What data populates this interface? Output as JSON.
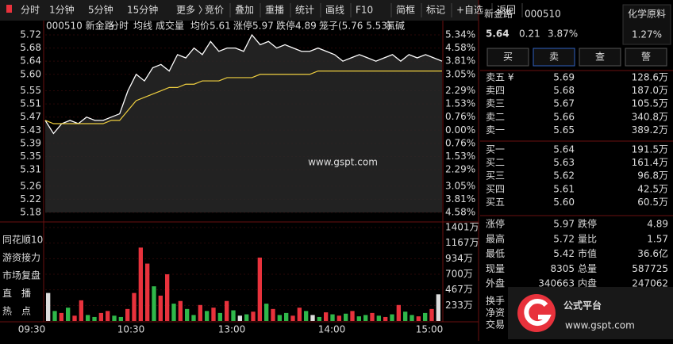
{
  "toolbar": {
    "periods": [
      "分时",
      "1分钟",
      "5分钟",
      "15分钟",
      "更多 〉"
    ],
    "tools": [
      "竞价",
      "叠加",
      "重播",
      "统计",
      "画线",
      "F10",
      "简框",
      "标记",
      "+自选",
      "返回"
    ]
  },
  "chart_header": {
    "code_name": "000510 新金路",
    "mode": "分时",
    "avg_line": "均线",
    "volume": "成交量",
    "avg_price_label": "均价",
    "avg_price": "5.61",
    "limit_up_label": "涨停",
    "limit_up": "5.97",
    "limit_down_label": "跌停",
    "limit_down": "4.89",
    "cage_label": "笼子",
    "cage": "(5.76 5.53)",
    "sector": "氯碱"
  },
  "intraday": {
    "type": "line",
    "ylim": [
      5.18,
      5.72
    ],
    "yticks": [
      {
        "value": 5.72,
        "label": "5.72"
      },
      {
        "value": 5.68,
        "label": "5.68"
      },
      {
        "value": 5.64,
        "label": "5.64"
      },
      {
        "value": 5.6,
        "label": "5.60"
      },
      {
        "value": 5.55,
        "label": "5.55"
      },
      {
        "value": 5.51,
        "label": "5.51"
      },
      {
        "value": 5.47,
        "label": "5.47"
      },
      {
        "value": 5.43,
        "label": "5.43"
      },
      {
        "value": 5.39,
        "label": "5.39"
      },
      {
        "value": 5.35,
        "label": "5.35"
      },
      {
        "value": 5.31,
        "label": "5.31"
      },
      {
        "value": 5.26,
        "label": "5.26"
      },
      {
        "value": 5.22,
        "label": "5.22"
      },
      {
        "value": 5.18,
        "label": "5.18"
      }
    ],
    "pct_labels": [
      "5.34%",
      "4.58%",
      "3.81%",
      "3.05%",
      "2.29%",
      "1.53%",
      "0.76%",
      "0.00%",
      "0.76%",
      "1.53%",
      "2.29%",
      "3.05%",
      "3.81%",
      "4.58%"
    ],
    "times": [
      "09:30",
      "10:30",
      "13:00",
      "14:00",
      "15:00"
    ],
    "price": {
      "name": "price",
      "color": "#ffffff",
      "values": [
        5.46,
        5.42,
        5.45,
        5.46,
        5.45,
        5.47,
        5.46,
        5.46,
        5.47,
        5.48,
        5.55,
        5.6,
        5.58,
        5.62,
        5.63,
        5.61,
        5.66,
        5.65,
        5.68,
        5.66,
        5.7,
        5.67,
        5.68,
        5.68,
        5.67,
        5.72,
        5.69,
        5.7,
        5.68,
        5.69,
        5.68,
        5.67,
        5.67,
        5.68,
        5.67,
        5.66,
        5.64,
        5.65,
        5.66,
        5.65,
        5.64,
        5.65,
        5.66,
        5.64,
        5.66,
        5.65,
        5.66,
        5.65,
        5.64
      ]
    },
    "avg": {
      "name": "avg",
      "color": "#f0d040",
      "values": [
        5.46,
        5.45,
        5.45,
        5.45,
        5.45,
        5.45,
        5.45,
        5.45,
        5.46,
        5.46,
        5.49,
        5.52,
        5.53,
        5.54,
        5.55,
        5.56,
        5.56,
        5.57,
        5.57,
        5.58,
        5.58,
        5.58,
        5.59,
        5.59,
        5.59,
        5.59,
        5.6,
        5.6,
        5.6,
        5.6,
        5.6,
        5.6,
        5.6,
        5.61,
        5.61,
        5.61,
        5.61,
        5.61,
        5.61,
        5.61,
        5.61,
        5.61,
        5.61,
        5.61,
        5.61,
        5.61,
        5.61,
        5.61,
        5.61
      ]
    },
    "vlim": [
      0,
      1401
    ],
    "vticks": [
      {
        "value": 1401,
        "label": "1401万"
      },
      {
        "value": 1167,
        "label": "1167万"
      },
      {
        "value": 934,
        "label": "934万"
      },
      {
        "value": 700,
        "label": "700万"
      },
      {
        "value": 467,
        "label": "467万"
      },
      {
        "value": 233,
        "label": "233万"
      }
    ],
    "volume": [
      420,
      150,
      120,
      200,
      80,
      310,
      90,
      60,
      120,
      150,
      80,
      60,
      180,
      420,
      1100,
      860,
      520,
      380,
      700,
      260,
      300,
      180,
      90,
      240,
      150,
      200,
      120,
      300,
      160,
      80,
      100,
      140,
      950,
      260,
      180,
      90,
      120,
      80,
      200,
      150,
      90,
      60,
      130,
      100,
      80,
      110,
      150,
      70,
      90,
      120,
      80,
      60,
      100,
      240,
      140,
      90,
      70,
      120,
      180,
      400
    ],
    "volume_colors": [
      "w",
      "g",
      "r",
      "g",
      "r",
      "r",
      "g",
      "g",
      "r",
      "r",
      "g",
      "g",
      "r",
      "r",
      "r",
      "r",
      "g",
      "r",
      "r",
      "g",
      "r",
      "g",
      "g",
      "r",
      "g",
      "r",
      "g",
      "r",
      "g",
      "w",
      "g",
      "r",
      "r",
      "g",
      "r",
      "g",
      "g",
      "r",
      "r",
      "g",
      "w",
      "g",
      "r",
      "g",
      "r",
      "g",
      "r",
      "g",
      "g",
      "r",
      "g",
      "r",
      "g",
      "r",
      "g",
      "g",
      "r",
      "g",
      "r",
      "w"
    ],
    "palette": {
      "r": "#e8323c",
      "g": "#2fb84a",
      "w": "#dddddd"
    }
  },
  "side_menu": [
    "同花顺10",
    "游资接力",
    "市场复盘",
    "直　播",
    "热　点"
  ],
  "watermark": "www.gspt.com",
  "quote": {
    "name": "新金路",
    "code": "000510",
    "industry": "化学原料",
    "price": "5.64",
    "change": "0.21",
    "pct": "3.87%",
    "industry_pct": "1.27%",
    "buttons": [
      "买",
      "卖",
      "查",
      "警"
    ],
    "asks": [
      [
        "卖五 ¥",
        "5.69",
        "128.6万"
      ],
      [
        "卖四",
        "5.68",
        "187.0万"
      ],
      [
        "卖三",
        "5.67",
        "105.5万"
      ],
      [
        "卖二",
        "5.66",
        "340.8万"
      ],
      [
        "卖一",
        "5.65",
        "389.2万"
      ]
    ],
    "bids": [
      [
        "买一",
        "5.64",
        "191.5万"
      ],
      [
        "买二",
        "5.63",
        "161.4万"
      ],
      [
        "买三",
        "5.62",
        "96.8万"
      ],
      [
        "买四",
        "5.61",
        "42.5万"
      ],
      [
        "买五",
        "5.60",
        "60.5万"
      ]
    ],
    "stats": [
      [
        "涨停",
        "5.97",
        "跌停",
        "4.89"
      ],
      [
        "最高",
        "5.72",
        "量比",
        "1.57"
      ],
      [
        "最低",
        "5.42",
        "市值",
        "36.6亿"
      ],
      [
        "现量",
        "8305",
        "总量",
        "587725"
      ],
      [
        "外盘",
        "340663",
        "内盘",
        "247062"
      ]
    ],
    "more": [
      "换手",
      "净资",
      "交易"
    ]
  },
  "logo": {
    "title": "公式平台",
    "url": "www.gspt.com"
  }
}
